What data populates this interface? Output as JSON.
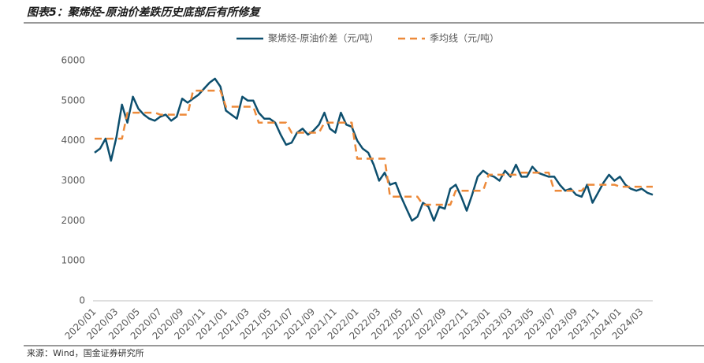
{
  "chart_data": {
    "type": "line",
    "title": "图表5：聚烯烃-原油价差跌历史底部后有所修复",
    "source": "来源：Wind，国金证券研究所",
    "categories": [
      "2020/01",
      null,
      null,
      null,
      "2020/03",
      null,
      null,
      null,
      "2020/05",
      null,
      null,
      null,
      "2020/07",
      null,
      null,
      null,
      "2020/09",
      null,
      null,
      null,
      "2020/11",
      null,
      null,
      null,
      "2021/01",
      null,
      null,
      null,
      "2021/03",
      null,
      null,
      null,
      "2021/05",
      null,
      null,
      null,
      "2021/07",
      null,
      null,
      null,
      "2021/09",
      null,
      null,
      null,
      "2021/11",
      null,
      null,
      null,
      "2022/01",
      null,
      null,
      null,
      "2022/03",
      null,
      null,
      null,
      "2022/05",
      null,
      null,
      null,
      "2022/07",
      null,
      null,
      null,
      "2022/09",
      null,
      null,
      null,
      "2022/11",
      null,
      null,
      null,
      "2023/01",
      null,
      null,
      null,
      "2023/03",
      null,
      null,
      null,
      "2023/05",
      null,
      null,
      null,
      "2023/07",
      null,
      null,
      null,
      "2023/09",
      null,
      null,
      null,
      "2023/11",
      null,
      null,
      null,
      "2024/01",
      null,
      null,
      null,
      "2024/03",
      null,
      null
    ],
    "series": [
      {
        "name": "聚烯烃-原油价差（元/吨）",
        "color": "#0d4f6e",
        "line_style": "solid",
        "values": [
          3700,
          3800,
          4050,
          3500,
          4100,
          4900,
          4450,
          5100,
          4800,
          4650,
          4550,
          4500,
          4600,
          4650,
          4500,
          4600,
          5050,
          4950,
          5050,
          5150,
          5300,
          5450,
          5550,
          5350,
          4750,
          4650,
          4550,
          5100,
          5000,
          5000,
          4700,
          4550,
          4550,
          4450,
          4150,
          3900,
          3950,
          4200,
          4300,
          4150,
          4250,
          4400,
          4700,
          4300,
          4200,
          4700,
          4400,
          4350,
          4000,
          3800,
          3700,
          3400,
          3000,
          3200,
          2900,
          2950,
          2600,
          2300,
          2000,
          2100,
          2450,
          2350,
          2000,
          2350,
          2300,
          2800,
          2900,
          2600,
          2250,
          2650,
          3100,
          3250,
          3150,
          3100,
          3000,
          3250,
          3100,
          3400,
          3100,
          3100,
          3350,
          3200,
          3150,
          3100,
          3100,
          2900,
          2750,
          2800,
          2650,
          2600,
          2900,
          2450,
          2700,
          2950,
          3150,
          3000,
          3100,
          2900,
          2800,
          2750,
          2800,
          2700,
          2650
        ]
      },
      {
        "name": "季均线（元/吨）",
        "color": "#ed8a3a",
        "line_style": "dashed",
        "values": [
          4050,
          4050,
          4050,
          4050,
          4050,
          4050,
          4700,
          4700,
          4700,
          4700,
          4700,
          4700,
          4650,
          4650,
          4650,
          4650,
          4650,
          4650,
          5250,
          5250,
          5250,
          5250,
          5250,
          5250,
          4850,
          4850,
          4850,
          4850,
          4850,
          4850,
          4450,
          4450,
          4450,
          4450,
          4450,
          4450,
          4200,
          4200,
          4200,
          4200,
          4200,
          4200,
          4450,
          4450,
          4450,
          4450,
          4450,
          4450,
          3550,
          3550,
          3550,
          3550,
          3550,
          3550,
          2600,
          2600,
          2600,
          2600,
          2600,
          2600,
          2400,
          2400,
          2400,
          2400,
          2400,
          2400,
          2750,
          2750,
          2750,
          2750,
          2750,
          2750,
          3150,
          3150,
          3150,
          3150,
          3150,
          3150,
          3200,
          3200,
          3200,
          3200,
          3200,
          3200,
          2750,
          2750,
          2750,
          2750,
          2750,
          2750,
          2900,
          2900,
          2900,
          2900,
          2900,
          2900,
          2850,
          2850,
          2850,
          2850,
          2850,
          2850,
          2850
        ]
      }
    ],
    "ylim": [
      0,
      6000
    ],
    "yticks": [
      0,
      1000,
      2000,
      3000,
      4000,
      5000,
      6000
    ],
    "grid": false,
    "legend": "top"
  }
}
